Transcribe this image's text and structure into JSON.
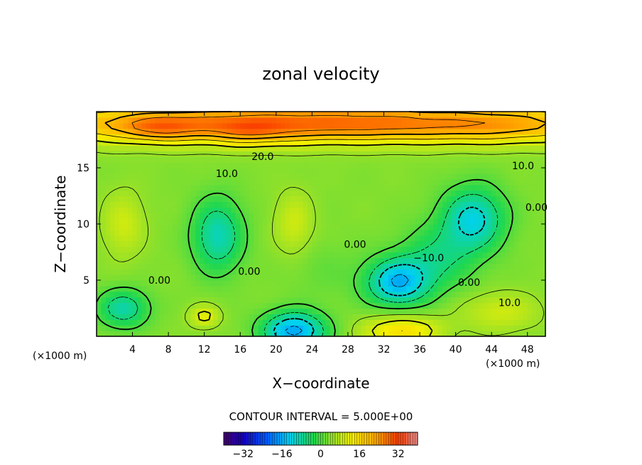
{
  "chart_data": {
    "type": "heatmap",
    "title": "zonal velocity",
    "xlabel": "X−coordinate",
    "ylabel": "Z−coordinate",
    "x_unit": "(×1000 m)",
    "y_unit": "(×1000 m)",
    "xlim": [
      0,
      50
    ],
    "ylim": [
      0,
      20
    ],
    "x_ticks": [
      4,
      8,
      12,
      16,
      20,
      24,
      28,
      32,
      36,
      40,
      44,
      48
    ],
    "y_ticks": [
      5,
      10,
      15
    ],
    "contour_interval_text": "CONTOUR INTERVAL = 5.000E+00",
    "colorbar": {
      "min": -40,
      "max": 40,
      "ticks": [
        -32,
        -16,
        0,
        16,
        32
      ],
      "tick_labels": [
        "−32",
        "−16",
        "0",
        "16",
        "32"
      ]
    },
    "contour_labels": [
      {
        "text": "20.0",
        "x": 18.5,
        "y": 16.0
      },
      {
        "text": "10.0",
        "x": 14.5,
        "y": 14.5
      },
      {
        "text": "10.0",
        "x": 47.5,
        "y": 15.2
      },
      {
        "text": "0.00",
        "x": 7.0,
        "y": 5.0
      },
      {
        "text": "0.00",
        "x": 17.0,
        "y": 5.8
      },
      {
        "text": "0.00",
        "x": 28.8,
        "y": 8.2
      },
      {
        "text": "−10.0",
        "x": 37.0,
        "y": 7.0
      },
      {
        "text": "0.00",
        "x": 41.5,
        "y": 4.8
      },
      {
        "text": "10.0",
        "x": 46.0,
        "y": 3.0
      },
      {
        "text": "0.00",
        "x": 49.0,
        "y": 11.5
      }
    ],
    "field_features": [
      {
        "x": 25,
        "z": 19,
        "value": 25,
        "sx": 25,
        "sz": 1.2
      },
      {
        "x": 7,
        "z": 18.5,
        "value": 8,
        "sx": 3,
        "sz": 0.8
      },
      {
        "x": 17,
        "z": 18.2,
        "value": 6,
        "sx": 3,
        "sz": 0.8
      },
      {
        "x": 45,
        "z": 18.5,
        "value": 3,
        "sx": 5,
        "sz": 1.0
      },
      {
        "x": 3,
        "z": 10,
        "value": 6,
        "sx": 1.6,
        "sz": 2.0
      },
      {
        "x": 22,
        "z": 10,
        "value": 6,
        "sx": 1.5,
        "sz": 2.0
      },
      {
        "x": 13.5,
        "z": 9,
        "value": -13,
        "sx": 2.0,
        "sz": 2.3
      },
      {
        "x": 33.5,
        "z": 4.8,
        "value": -18,
        "sx": 2.5,
        "sz": 1.5
      },
      {
        "x": 42,
        "z": 10.5,
        "value": -15,
        "sx": 2.5,
        "sz": 2.0
      },
      {
        "x": 38,
        "z": 7,
        "value": -8,
        "sx": 3,
        "sz": 2.0
      },
      {
        "x": 3,
        "z": 2.5,
        "value": -12,
        "sx": 2.0,
        "sz": 1.2
      },
      {
        "x": 22,
        "z": 0.5,
        "value": -20,
        "sx": 2.5,
        "sz": 1.2
      },
      {
        "x": 34,
        "z": 0.5,
        "value": 12,
        "sx": 3,
        "sz": 1.0
      },
      {
        "x": 12,
        "z": 1.8,
        "value": 8,
        "sx": 1.2,
        "sz": 0.7
      },
      {
        "x": 45,
        "z": 2.2,
        "value": 6,
        "sx": 3,
        "sz": 1.2
      },
      {
        "x": 25,
        "z": 6,
        "value": -2,
        "sx": 3,
        "sz": 2.0
      }
    ]
  }
}
